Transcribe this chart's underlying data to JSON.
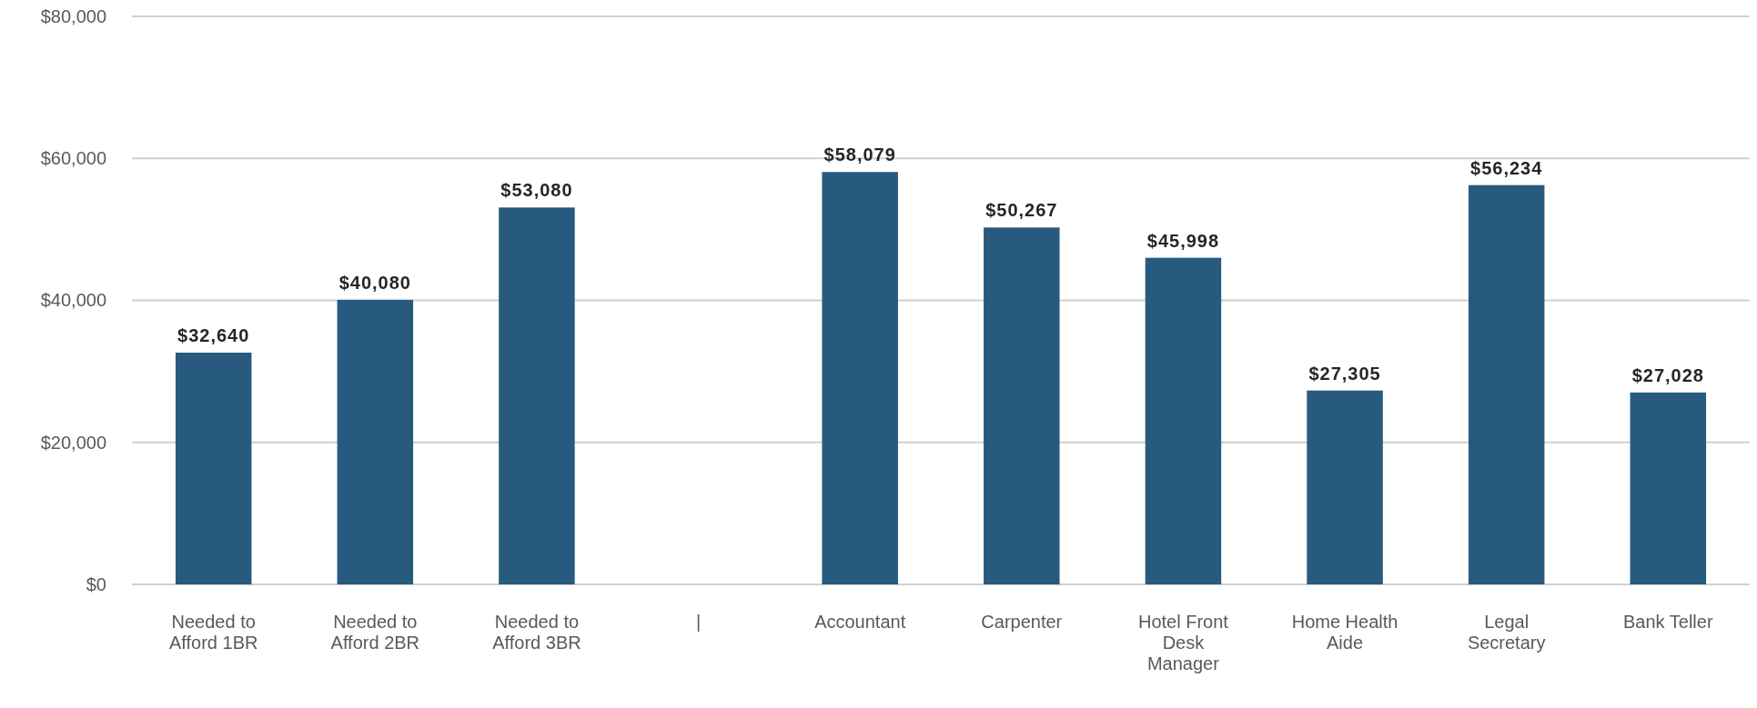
{
  "chart_data": {
    "type": "bar",
    "categories": [
      "Needed to Afford 1BR",
      "Needed to Afford 2BR",
      "Needed to Afford 3BR",
      "|",
      "Accountant",
      "Carpenter",
      "Hotel Front Desk Manager",
      "Home Health Aide",
      "Legal Secretary",
      "Bank Teller"
    ],
    "values": [
      32640,
      40080,
      53080,
      null,
      58079,
      50267,
      45998,
      27305,
      56234,
      27028
    ],
    "value_labels": [
      "$32,640",
      "$40,080",
      "$53,080",
      null,
      "$58,079",
      "$50,267",
      "$45,998",
      "$27,305",
      "$56,234",
      "$27,028"
    ],
    "color": "#285a7f",
    "ylim": [
      0,
      80000
    ],
    "yticks": [
      {
        "value": 0,
        "label": "$0"
      },
      {
        "value": 20000,
        "label": "$20,000"
      },
      {
        "value": 40000,
        "label": "$40,000"
      },
      {
        "value": 60000,
        "label": "$60,000"
      },
      {
        "value": 80000,
        "label": "$80,000"
      }
    ],
    "grid": "y"
  }
}
